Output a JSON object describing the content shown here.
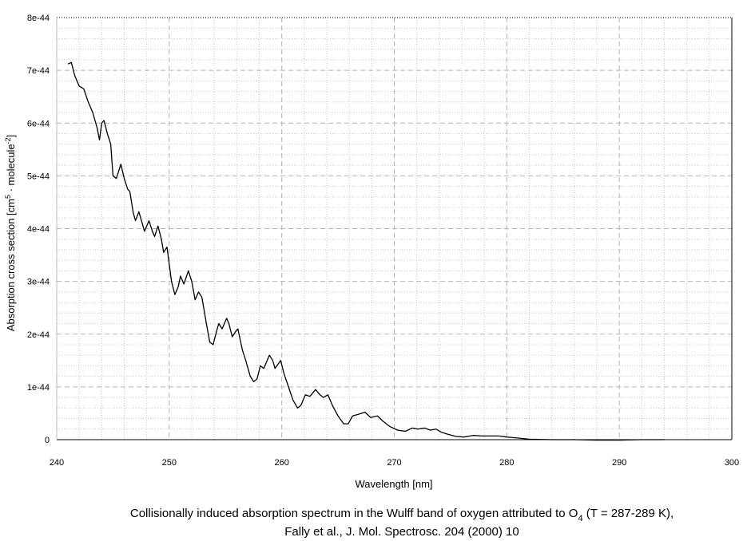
{
  "chart_data": {
    "type": "line",
    "x_label": "Wavelength [nm]",
    "y_label": [
      "Absorption cross section [cm",
      "5",
      " · molecule",
      "-2",
      "]"
    ],
    "caption": [
      "Collisionally induced absorption spectrum in the Wulff band of oxygen attributed to O",
      "4",
      " (T = 287-289 K),",
      "Fally et al., J. Mol. Spectrosc. 204 (2000) 10"
    ],
    "xlim": [
      240,
      300
    ],
    "ylim": [
      0,
      8e-44
    ],
    "xticks": [
      240,
      250,
      260,
      270,
      280,
      290,
      300
    ],
    "yticks": [
      0,
      1e-44,
      2e-44,
      3e-44,
      4e-44,
      5e-44,
      6e-44,
      7e-44,
      8e-44
    ],
    "xminorticks": [
      242,
      244,
      246,
      248,
      252,
      254,
      256,
      258,
      262,
      264,
      266,
      268,
      272,
      274,
      276,
      278,
      282,
      284,
      286,
      288,
      292,
      294,
      296,
      298
    ],
    "yminorticks": [
      2e-45,
      4e-45,
      6e-45,
      8e-45,
      1.2e-44,
      1.4e-44,
      1.6e-44,
      1.8e-44,
      2.2e-44,
      2.4e-44,
      2.6e-44,
      2.8e-44,
      3.2e-44,
      3.4e-44,
      3.6e-44,
      3.8e-44,
      4.2e-44,
      4.4e-44,
      4.6e-44,
      4.8e-44,
      5.2e-44,
      5.4e-44,
      5.6e-44,
      5.8e-44,
      6.2e-44,
      6.4e-44,
      6.6e-44,
      6.8e-44,
      7.2e-44,
      7.4e-44,
      7.6e-44,
      7.8e-44
    ],
    "grid": true,
    "series": [
      {
        "color": "#000000",
        "x": [
          241.0,
          241.3,
          241.6,
          242.0,
          242.4,
          242.8,
          243.2,
          243.6,
          243.8,
          244.0,
          244.2,
          244.5,
          244.8,
          245.0,
          245.3,
          245.7,
          246.0,
          246.3,
          246.5,
          246.8,
          247.0,
          247.3,
          247.6,
          247.8,
          248.2,
          248.5,
          248.7,
          249.0,
          249.3,
          249.5,
          249.8,
          250.2,
          250.5,
          250.8,
          251.0,
          251.3,
          251.7,
          252.0,
          252.3,
          252.6,
          252.9,
          253.3,
          253.6,
          253.9,
          254.2,
          254.4,
          254.7,
          255.1,
          255.3,
          255.6,
          255.9,
          256.1,
          256.5,
          256.8,
          257.2,
          257.5,
          257.8,
          258.1,
          258.4,
          258.9,
          259.2,
          259.4,
          259.9,
          260.2,
          260.6,
          261.0,
          261.4,
          261.7,
          262.1,
          262.5,
          263.0,
          263.4,
          263.7,
          264.1,
          264.5,
          265.0,
          265.5,
          265.9,
          266.3,
          266.8,
          267.4,
          267.9,
          268.5,
          269.0,
          269.6,
          270.3,
          271.0,
          271.6,
          272.1,
          272.7,
          273.2,
          273.7,
          274.2,
          274.8,
          275.5,
          276.2,
          277.0,
          277.8,
          278.5,
          279.3,
          280.0,
          281.0,
          282.0,
          284.0,
          286.0,
          288.0,
          290.0,
          292.0,
          294.0
        ],
        "values": [
          7.12e-44,
          7.15e-44,
          6.9e-44,
          6.7e-44,
          6.65e-44,
          6.4e-44,
          6.2e-44,
          5.9e-44,
          5.68e-44,
          6e-44,
          6.05e-44,
          5.8e-44,
          5.6e-44,
          5e-44,
          4.95e-44,
          5.22e-44,
          4.95e-44,
          4.75e-44,
          4.7e-44,
          4.3e-44,
          4.15e-44,
          4.32e-44,
          4.1e-44,
          3.95e-44,
          4.15e-44,
          3.95e-44,
          3.85e-44,
          4.05e-44,
          3.8e-44,
          3.55e-44,
          3.65e-44,
          3e-44,
          2.75e-44,
          2.9e-44,
          3.1e-44,
          2.95e-44,
          3.2e-44,
          3e-44,
          2.65e-44,
          2.8e-44,
          2.7e-44,
          2.2e-44,
          1.85e-44,
          1.8e-44,
          2.05e-44,
          2.2e-44,
          2.1e-44,
          2.3e-44,
          2.2e-44,
          1.95e-44,
          2.05e-44,
          2.1e-44,
          1.7e-44,
          1.5e-44,
          1.2e-44,
          1.1e-44,
          1.15e-44,
          1.4e-44,
          1.35e-44,
          1.6e-44,
          1.5e-44,
          1.35e-44,
          1.5e-44,
          1.25e-44,
          1e-44,
          7.5e-45,
          6e-45,
          6.5e-45,
          8.5e-45,
          8.2e-45,
          9.5e-45,
          8.5e-45,
          8e-45,
          8.5e-45,
          6.5e-45,
          4.5e-45,
          3e-45,
          3e-45,
          4.5e-45,
          4.8e-45,
          5.2e-45,
          4.2e-45,
          4.5e-45,
          3.5e-45,
          2.5e-45,
          1.8e-45,
          1.6e-45,
          2.2e-45,
          2e-45,
          2.2e-45,
          1.8e-45,
          2e-45,
          1.4e-45,
          1e-45,
          6e-46,
          5e-46,
          8e-46,
          7e-46,
          7e-46,
          7e-46,
          5e-46,
          3e-46,
          1e-46,
          0,
          0,
          -1e-46,
          -1e-46,
          0,
          0
        ]
      }
    ]
  }
}
